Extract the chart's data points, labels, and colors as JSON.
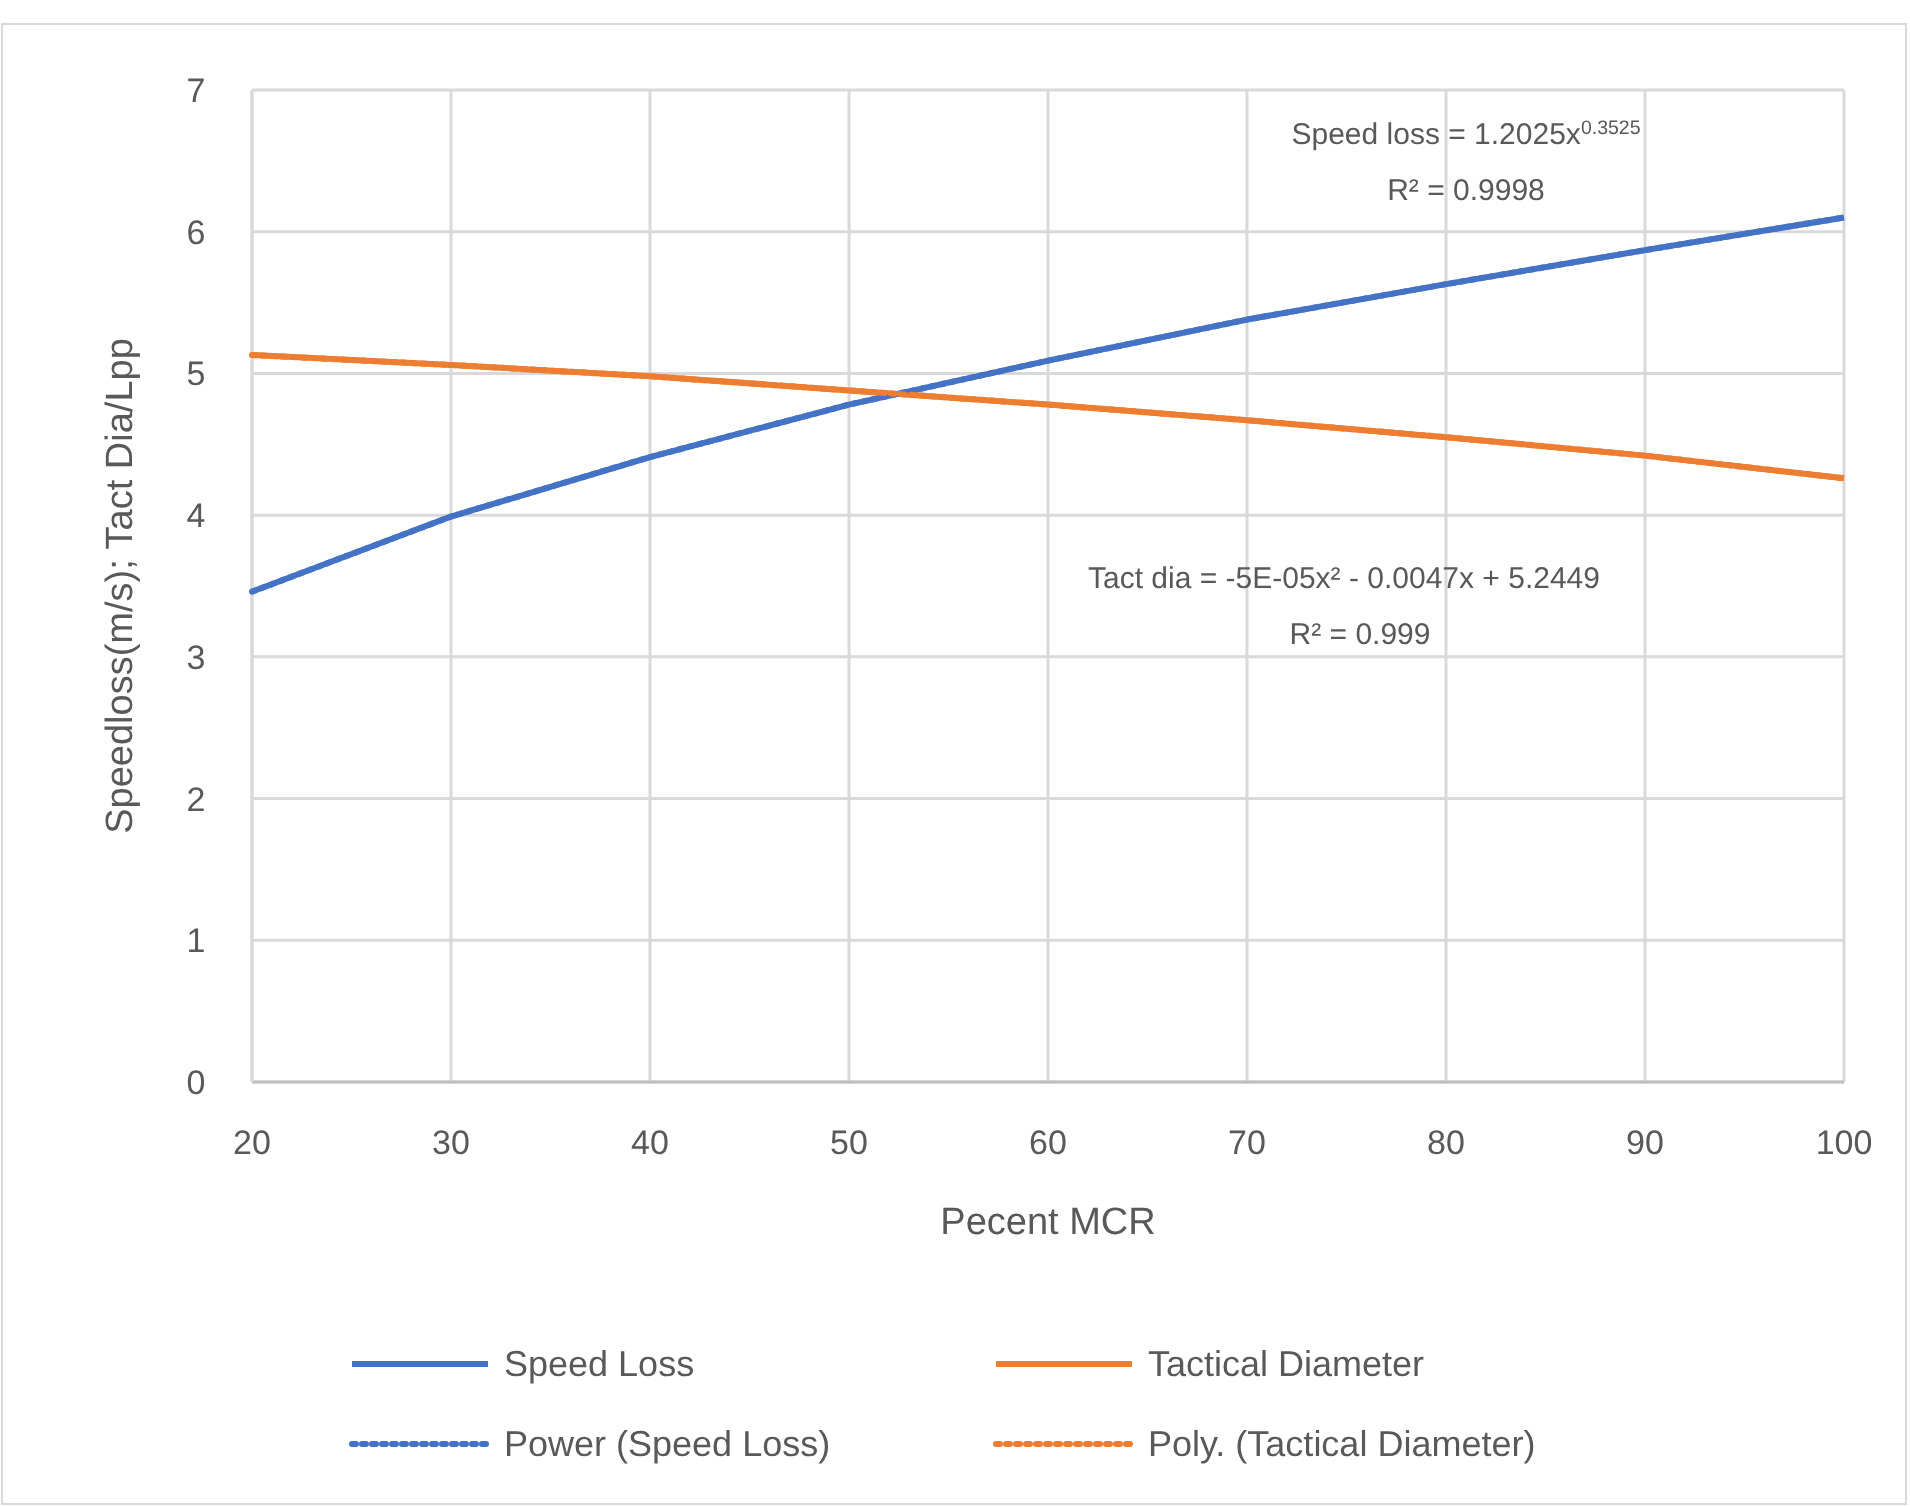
{
  "chart_data": {
    "type": "line",
    "xlabel": "Pecent MCR",
    "ylabel": "Speedloss(m/s); Tact Dia/Lpp",
    "x": [
      20,
      30,
      40,
      50,
      60,
      70,
      80,
      90,
      100
    ],
    "series": [
      {
        "name": "Speed Loss",
        "color": "#4472c4",
        "values": [
          3.46,
          3.99,
          4.41,
          4.78,
          5.09,
          5.38,
          5.63,
          5.87,
          6.1
        ],
        "line_style": "solid"
      },
      {
        "name": "Tactical Diameter",
        "color": "#ed7d31",
        "values": [
          5.13,
          5.06,
          4.98,
          4.88,
          4.78,
          4.67,
          4.55,
          4.42,
          4.26
        ],
        "line_style": "solid"
      },
      {
        "name": "Power (Speed Loss)",
        "color": "#4472c4",
        "values": [
          3.46,
          3.99,
          4.41,
          4.78,
          5.09,
          5.38,
          5.63,
          5.87,
          6.1
        ],
        "line_style": "dotted"
      },
      {
        "name": "Poly. (Tactical Diameter)",
        "color": "#ed7d31",
        "values": [
          5.13,
          5.06,
          4.98,
          4.88,
          4.78,
          4.67,
          4.55,
          4.42,
          4.26
        ],
        "line_style": "dotted"
      }
    ],
    "xlim": [
      20,
      100
    ],
    "xticks": [
      20,
      30,
      40,
      50,
      60,
      70,
      80,
      90,
      100
    ],
    "ylim": [
      0,
      7
    ],
    "yticks": [
      0,
      1,
      2,
      3,
      4,
      5,
      6,
      7
    ],
    "grid": true,
    "legend": "bottom",
    "marker": "none",
    "annotations": [
      "Speed loss = 1.2025x$^{0.3525}$",
      "R² = 0.9998",
      "Tact dia = -5E-05x² - 0.0047x + 5.2449",
      "R² = 0.999"
    ]
  }
}
